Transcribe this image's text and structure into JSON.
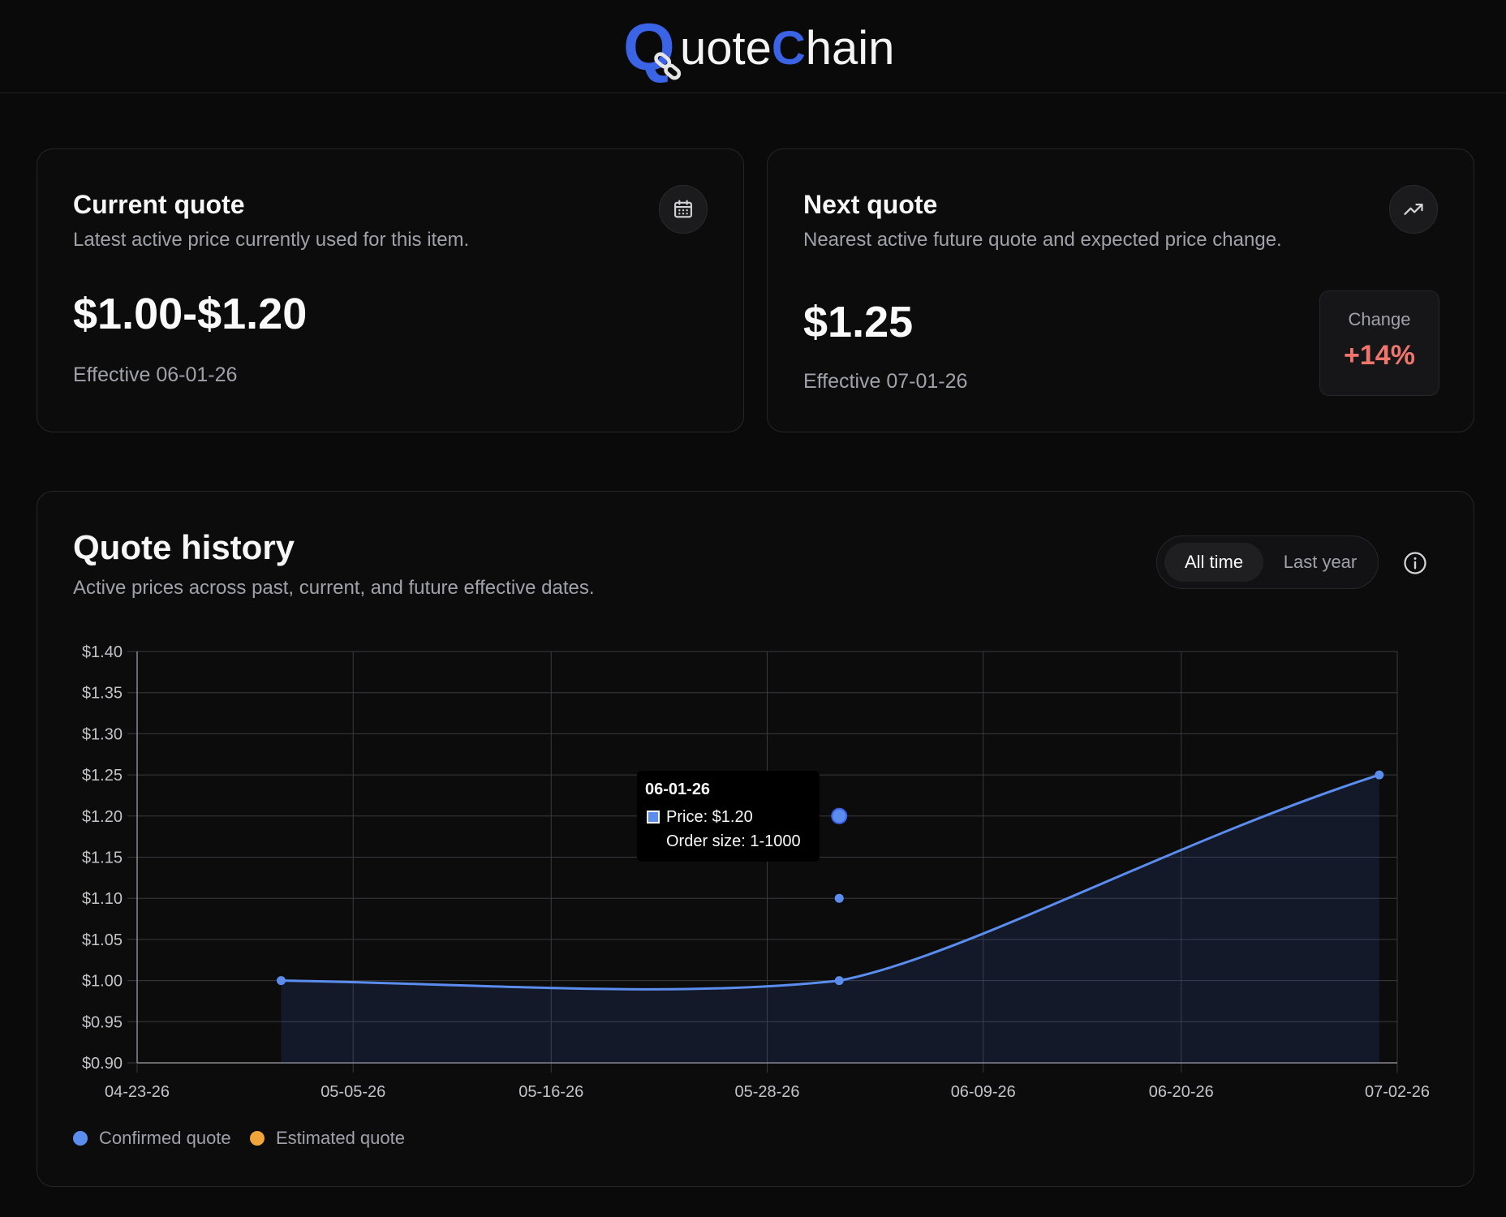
{
  "header": {
    "brand_q": "Q",
    "brand_w1": "uote",
    "brand_c": "C",
    "brand_w2": "hain",
    "brand_color": "#3b63e6"
  },
  "current_quote": {
    "title": "Current quote",
    "subtitle": "Latest active price currently used for this item.",
    "price": "$1.00-$1.20",
    "effective": "Effective 06-01-26",
    "icon": "calendar-icon"
  },
  "next_quote": {
    "title": "Next quote",
    "subtitle": "Nearest active future quote and expected price change.",
    "price": "$1.25",
    "effective": "Effective 07-01-26",
    "icon": "trending-up-icon",
    "change_label": "Change",
    "change_value": "+14%",
    "change_color": "#f0766d"
  },
  "history": {
    "title": "Quote history",
    "subtitle": "Active prices across past, current, and future effective dates.",
    "range_options": [
      "All time",
      "Last year"
    ],
    "selected_range": "All time",
    "info_icon": "info-icon",
    "tooltip": {
      "date": "06-01-26",
      "price": "Price: $1.20",
      "order_size": "Order size: 1-1000"
    },
    "legend": [
      {
        "label": "Confirmed quote",
        "color": "#5b8def"
      },
      {
        "label": "Estimated quote",
        "color": "#f0a53b"
      }
    ]
  },
  "chart_data": {
    "type": "line",
    "x_ticks": [
      "04-23-26",
      "05-05-26",
      "05-16-26",
      "05-28-26",
      "06-09-26",
      "06-20-26",
      "07-02-26"
    ],
    "y_ticks": [
      "$0.90",
      "$0.95",
      "$1.00",
      "$1.05",
      "$1.10",
      "$1.15",
      "$1.20",
      "$1.25",
      "$1.30",
      "$1.35",
      "$1.40"
    ],
    "xlim": [
      "04-23-26",
      "07-02-26"
    ],
    "ylim": [
      0.9,
      1.4
    ],
    "grid": true,
    "legend_position": "bottom-left",
    "series": [
      {
        "name": "Confirmed quote",
        "color": "#5b8def",
        "points": [
          {
            "x": "05-01-26",
            "y": 1.0
          },
          {
            "x": "06-01-26",
            "y": 1.0
          },
          {
            "x": "07-01-26",
            "y": 1.25
          }
        ],
        "extra_points": [
          {
            "x": "06-01-26",
            "y": 1.1
          },
          {
            "x": "06-01-26",
            "y": 1.2,
            "highlighted": true
          }
        ]
      }
    ]
  }
}
